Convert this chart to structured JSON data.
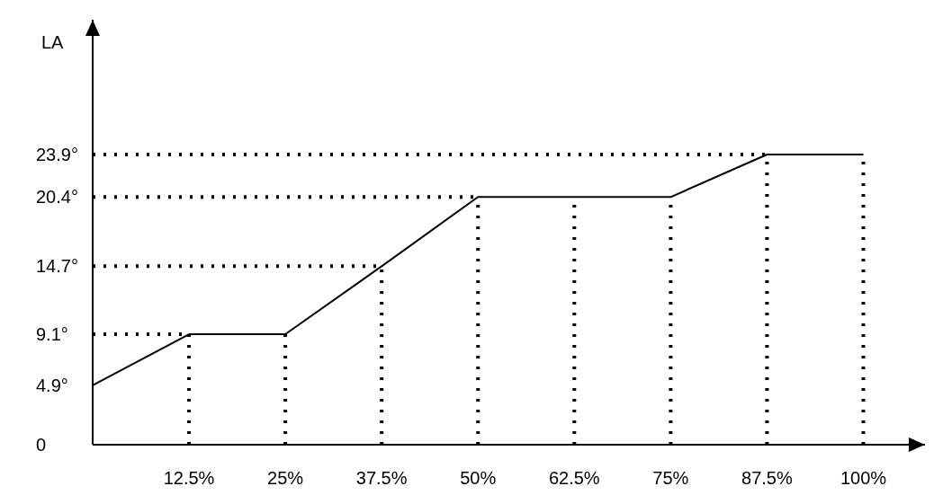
{
  "chart_data": {
    "type": "line",
    "ylabel": "LA",
    "x": [
      0,
      12.5,
      25,
      37.5,
      50,
      62.5,
      75,
      87.5,
      100
    ],
    "series": [
      {
        "color": "#000000",
        "values": [
          4.9,
          9.1,
          9.1,
          14.7,
          20.4,
          20.4,
          20.4,
          23.9,
          23.9
        ]
      }
    ],
    "xlim": [
      0,
      108
    ],
    "xticks": [
      {
        "value": 12.5,
        "label": "12.5%"
      },
      {
        "value": 25,
        "label": "25%"
      },
      {
        "value": 37.5,
        "label": "37.5%"
      },
      {
        "value": 50,
        "label": "50%"
      },
      {
        "value": 62.5,
        "label": "62.5%"
      },
      {
        "value": 75,
        "label": "75%"
      },
      {
        "value": 87.5,
        "label": "87.5%"
      },
      {
        "value": 100,
        "label": "100%"
      }
    ],
    "ylim": [
      0,
      35
    ],
    "yticks": [
      0,
      {
        "value": 4.9,
        "label": "4.9°"
      },
      {
        "value": 9.1,
        "label": "9.1°"
      },
      {
        "value": 14.7,
        "label": "14.7°"
      },
      {
        "value": 20.4,
        "label": "20.4°"
      },
      {
        "value": 23.9,
        "label": "23.9°"
      }
    ],
    "ref_lines": [
      {
        "axis": "y",
        "value": 9.1,
        "color": "#000000",
        "line_style": "dotted"
      },
      {
        "axis": "y",
        "value": 14.7,
        "color": "#000000",
        "line_style": "dotted"
      },
      {
        "axis": "y",
        "value": 20.4,
        "color": "#000000",
        "line_style": "dotted"
      },
      {
        "axis": "y",
        "value": 23.9,
        "color": "#000000",
        "line_style": "dotted"
      },
      {
        "axis": "x",
        "value": 12.5,
        "color": "#000000",
        "line_style": "dotted"
      },
      {
        "axis": "x",
        "value": 25,
        "color": "#000000",
        "line_style": "dotted"
      },
      {
        "axis": "x",
        "value": 37.5,
        "color": "#000000",
        "line_style": "dotted"
      },
      {
        "axis": "x",
        "value": 50,
        "color": "#000000",
        "line_style": "dotted"
      },
      {
        "axis": "x",
        "value": 62.5,
        "color": "#000000",
        "line_style": "dotted"
      },
      {
        "axis": "x",
        "value": 75,
        "color": "#000000",
        "line_style": "dotted"
      },
      {
        "axis": "x",
        "value": 87.5,
        "color": "#000000",
        "line_style": "dotted"
      },
      {
        "axis": "x",
        "value": 100,
        "color": "#000000",
        "line_style": "dotted"
      }
    ],
    "grid": false,
    "legend": false,
    "marker": "none",
    "line_style": "solid"
  }
}
